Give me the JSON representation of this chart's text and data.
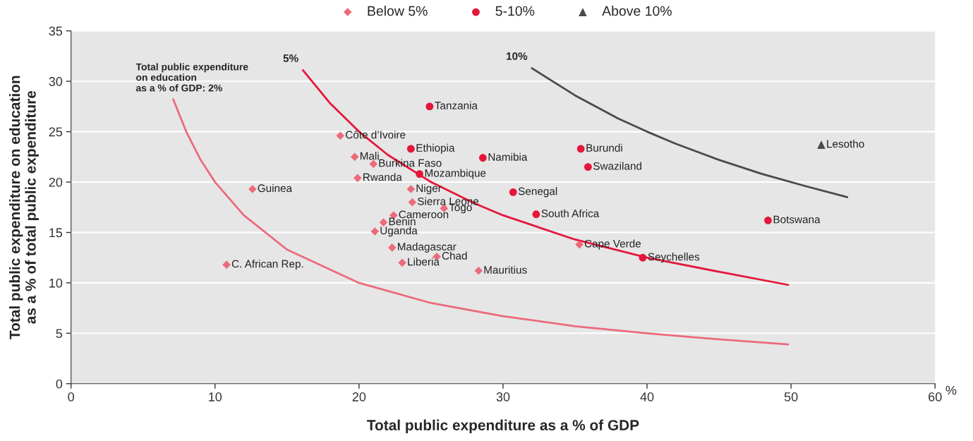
{
  "chart_data": {
    "type": "scatter",
    "xlabel": "Total public expenditure as a % of GDP",
    "ylabel": "Total public expenditure on education\nas a % of total public expenditure",
    "xlim": [
      0,
      60
    ],
    "xticks": [
      0,
      10,
      20,
      30,
      40,
      50,
      60
    ],
    "ylim": [
      0,
      35
    ],
    "yticks": [
      0,
      5,
      10,
      15,
      20,
      25,
      30,
      35
    ],
    "grid": "y",
    "legend": "top",
    "series": [
      {
        "name": "Below 5%",
        "color": "#ec6a7c",
        "marker": "diamond",
        "x": [
          18.7,
          19.7,
          21.0,
          19.9,
          12.6,
          23.6,
          23.7,
          25.9,
          22.4,
          21.7,
          21.1,
          22.3,
          25.4,
          23.0,
          28.3,
          10.8,
          35.3
        ],
        "values": [
          24.6,
          22.5,
          21.8,
          20.4,
          19.3,
          19.3,
          18.0,
          17.4,
          16.7,
          16.0,
          15.1,
          13.5,
          12.6,
          12.0,
          11.2,
          11.8,
          13.8
        ]
      },
      {
        "name": "5-10%",
        "color": "#e4173a",
        "marker": "circle",
        "x": [
          24.9,
          23.6,
          28.6,
          24.2,
          30.7,
          35.4,
          35.9,
          32.3,
          48.4,
          39.7
        ],
        "values": [
          27.5,
          23.3,
          22.4,
          20.8,
          19.0,
          23.3,
          21.5,
          16.8,
          16.2,
          12.5
        ]
      },
      {
        "name": "Above 10%",
        "color": "#4a4a4a",
        "marker": "triangle",
        "x": [
          52.1
        ],
        "values": [
          23.7
        ]
      },
      {
        "type": "line",
        "color": "#ec6a7c",
        "x": [
          7.1,
          8,
          9,
          10,
          12,
          15,
          20,
          25,
          30,
          35,
          40,
          45,
          49.8
        ],
        "values": [
          28.2,
          25,
          22.2,
          20,
          16.7,
          13.3,
          10,
          8,
          6.7,
          5.7,
          5,
          4.4,
          3.9
        ]
      },
      {
        "type": "line",
        "color": "#e4173a",
        "x": [
          16.1,
          18,
          20,
          22,
          25,
          28,
          30,
          35,
          40,
          45,
          49.8
        ],
        "values": [
          31.1,
          27.8,
          25,
          22.7,
          20,
          17.9,
          16.7,
          14.3,
          12.5,
          11.1,
          9.8
        ]
      },
      {
        "type": "line",
        "color": "#4a4a4a",
        "x": [
          32,
          35,
          38,
          40,
          42,
          45,
          48,
          51,
          53.9
        ],
        "values": [
          31.3,
          28.6,
          26.3,
          25,
          23.8,
          22.2,
          20.8,
          19.6,
          18.5
        ]
      }
    ],
    "annotations": [
      {
        "text": "Côte d’Ivoire",
        "x": 18.7,
        "y": 24.6
      },
      {
        "text": "Mali",
        "x": 19.7,
        "y": 22.5
      },
      {
        "text": "Burkina Faso",
        "x": 21.0,
        "y": 21.8
      },
      {
        "text": "Rwanda",
        "x": 19.9,
        "y": 20.4
      },
      {
        "text": "Guinea",
        "x": 12.6,
        "y": 19.3
      },
      {
        "text": "Niger",
        "x": 23.6,
        "y": 19.3
      },
      {
        "text": "Sierra Leone",
        "x": 23.7,
        "y": 18.0
      },
      {
        "text": "Togo",
        "x": 25.9,
        "y": 17.4
      },
      {
        "text": "Cameroon",
        "x": 22.4,
        "y": 16.7
      },
      {
        "text": "Benin",
        "x": 21.7,
        "y": 16.0
      },
      {
        "text": "Uganda",
        "x": 21.1,
        "y": 15.1
      },
      {
        "text": "Madagascar",
        "x": 22.3,
        "y": 13.5
      },
      {
        "text": "Chad",
        "x": 25.4,
        "y": 12.6
      },
      {
        "text": "Liberia",
        "x": 23.0,
        "y": 12.0
      },
      {
        "text": "Mauritius",
        "x": 28.3,
        "y": 11.2
      },
      {
        "text": "C. African Rep.",
        "x": 10.8,
        "y": 11.8
      },
      {
        "text": "Cape Verde",
        "x": 35.3,
        "y": 13.8
      },
      {
        "text": "Tanzania",
        "x": 24.9,
        "y": 27.5
      },
      {
        "text": "Ethiopia",
        "x": 23.6,
        "y": 23.3
      },
      {
        "text": "Namibia",
        "x": 28.6,
        "y": 22.4
      },
      {
        "text": "Mozambique",
        "x": 24.2,
        "y": 20.8
      },
      {
        "text": "Senegal",
        "x": 30.7,
        "y": 19.0
      },
      {
        "text": "Burundi",
        "x": 35.4,
        "y": 23.3
      },
      {
        "text": "Swaziland",
        "x": 35.9,
        "y": 21.5
      },
      {
        "text": "South Africa",
        "x": 32.3,
        "y": 16.8
      },
      {
        "text": "Botswana",
        "x": 48.4,
        "y": 16.2
      },
      {
        "text": "Seychelles",
        "x": 39.7,
        "y": 12.5
      },
      {
        "text": "Lesotho",
        "x": 52.1,
        "y": 23.7
      },
      {
        "text": "Total public expenditure\non education\nas a % of GDP: 2%",
        "x": 7.1,
        "y": 28.2
      },
      {
        "text": "5%",
        "x": 16.1,
        "y": 31.1
      },
      {
        "text": "10%",
        "x": 32,
        "y": 31.3
      },
      "%"
    ]
  }
}
